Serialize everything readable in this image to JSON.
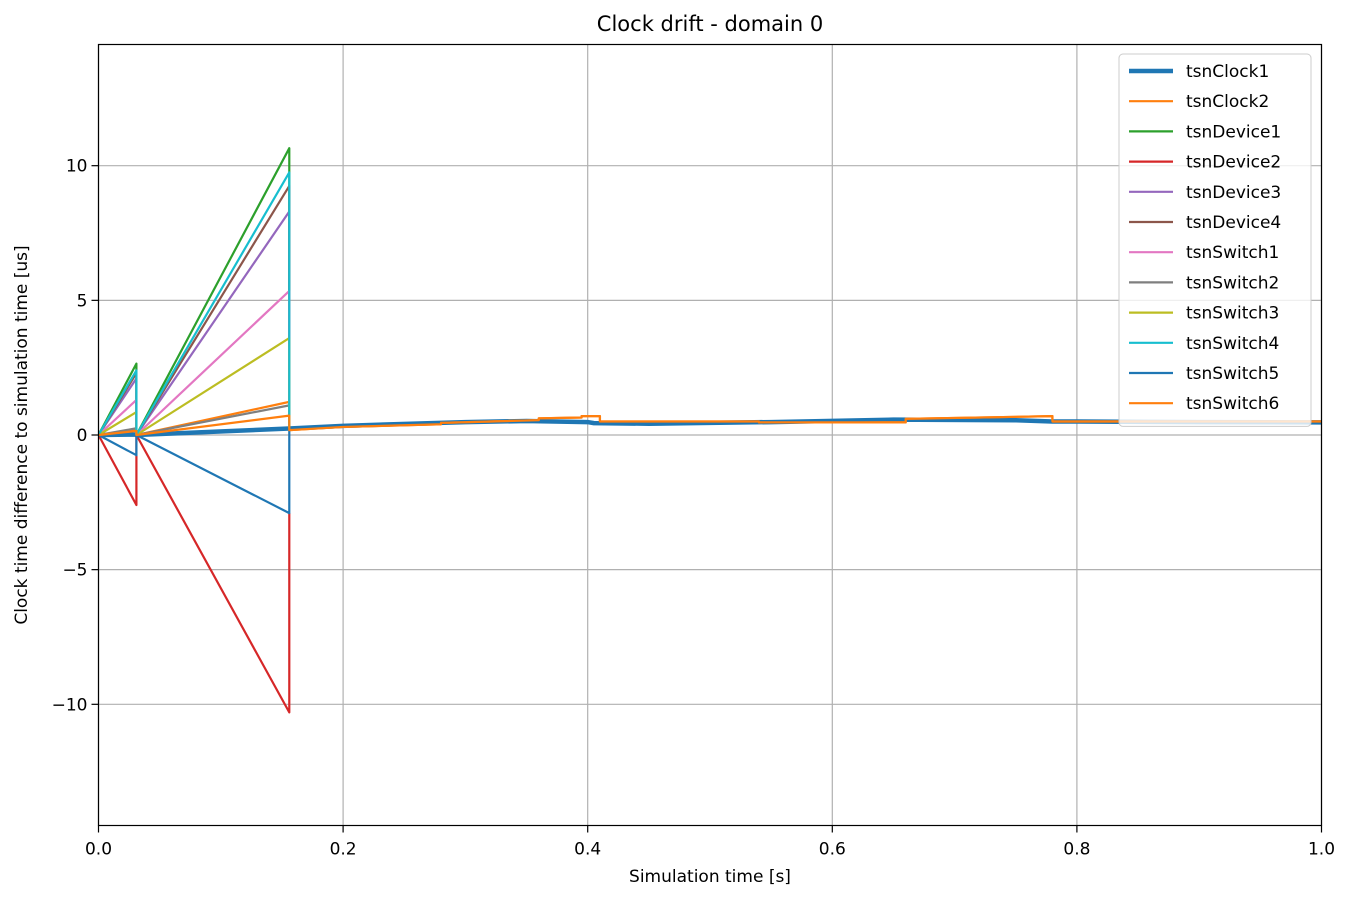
{
  "chart_data": {
    "type": "line",
    "title": "Clock drift - domain 0",
    "xlabel": "Simulation time [s]",
    "ylabel": "Clock time difference to simulation time [us]",
    "xlim": [
      0.0,
      1.0
    ],
    "ylim": [
      -14.5,
      14.5
    ],
    "xticks": [
      0.0,
      0.2,
      0.4,
      0.6,
      0.8,
      1.0
    ],
    "xtick_labels": [
      "0.0",
      "0.2",
      "0.4",
      "0.6",
      "0.8",
      "1.0"
    ],
    "yticks": [
      -10,
      -5,
      0,
      5,
      10
    ],
    "ytick_labels": [
      "−10",
      "−5",
      "0",
      "5",
      "10"
    ],
    "grid": true,
    "legend_position": "top-right",
    "series": [
      {
        "name": "tsnClock1",
        "color": "#1f77b4",
        "width": 4.5,
        "x": [
          0,
          0.031,
          0.031,
          0.156,
          0.2,
          0.3,
          0.35,
          0.4,
          0.405,
          0.45,
          0.55,
          0.65,
          0.75,
          0.78,
          0.8,
          0.9,
          1.0
        ],
        "y": [
          0,
          0.02,
          0,
          0.24,
          0.34,
          0.48,
          0.52,
          0.48,
          0.44,
          0.42,
          0.48,
          0.57,
          0.55,
          0.5,
          0.5,
          0.48,
          0.47
        ]
      },
      {
        "name": "tsnClock2",
        "color": "#ff7f0e",
        "width": 2.2,
        "x": [
          0,
          0.031,
          0.031,
          0.156,
          0.156,
          0.2,
          0.28,
          0.28,
          0.36,
          0.36,
          0.395,
          0.395,
          0.41,
          0.41,
          0.54,
          0.54,
          0.66,
          0.66,
          0.78,
          0.78,
          1.0
        ],
        "y": [
          0,
          0.18,
          0,
          1.23,
          0.18,
          0.3,
          0.4,
          0.45,
          0.55,
          0.62,
          0.65,
          0.7,
          0.7,
          0.5,
          0.5,
          0.47,
          0.47,
          0.6,
          0.7,
          0.5,
          0.5
        ]
      },
      {
        "name": "tsnDevice1",
        "color": "#2ca02c",
        "width": 2.2,
        "x": [
          0,
          0.031,
          0.031,
          0.156,
          0.156
        ],
        "y": [
          0,
          2.65,
          0,
          10.65,
          0.2
        ]
      },
      {
        "name": "tsnDevice2",
        "color": "#d62728",
        "width": 2.2,
        "x": [
          0,
          0.031,
          0.031,
          0.156,
          0.156
        ],
        "y": [
          0,
          -2.6,
          0,
          -10.3,
          -2.9
        ]
      },
      {
        "name": "tsnDevice3",
        "color": "#9467bd",
        "width": 2.2,
        "x": [
          0,
          0.031,
          0.031,
          0.156,
          0.156
        ],
        "y": [
          0,
          2.1,
          0,
          8.3,
          0.2
        ]
      },
      {
        "name": "tsnDevice4",
        "color": "#8c564b",
        "width": 2.2,
        "x": [
          0,
          0.031,
          0.031,
          0.156,
          0.156
        ],
        "y": [
          0,
          2.3,
          0,
          9.25,
          0.2
        ]
      },
      {
        "name": "tsnSwitch1",
        "color": "#e377c2",
        "width": 2.2,
        "x": [
          0,
          0.031,
          0.031,
          0.156,
          0.156
        ],
        "y": [
          0,
          1.3,
          0,
          5.35,
          0.2
        ]
      },
      {
        "name": "tsnSwitch2",
        "color": "#7f7f7f",
        "width": 2.2,
        "x": [
          0,
          0.031,
          0.031,
          0.156,
          0.156
        ],
        "y": [
          0,
          0.25,
          0,
          1.1,
          0.15
        ]
      },
      {
        "name": "tsnSwitch3",
        "color": "#bcbd22",
        "width": 2.2,
        "x": [
          0,
          0.031,
          0.031,
          0.156,
          0.156
        ],
        "y": [
          0,
          0.85,
          0,
          3.6,
          0.2
        ]
      },
      {
        "name": "tsnSwitch4",
        "color": "#17becf",
        "width": 2.2,
        "x": [
          0,
          0.031,
          0.031,
          0.156,
          0.156
        ],
        "y": [
          0,
          2.4,
          0,
          9.75,
          0.2
        ]
      },
      {
        "name": "tsnSwitch5",
        "color": "#1f77b4",
        "width": 2.2,
        "x": [
          0,
          0.031,
          0.031,
          0.156,
          0.156,
          0.2,
          0.3,
          0.35,
          0.4,
          0.405,
          0.45,
          0.55,
          0.65,
          0.75,
          0.78,
          0.8,
          0.9,
          1.0
        ],
        "y": [
          0,
          -0.75,
          0,
          -2.9,
          0.24,
          0.34,
          0.48,
          0.52,
          0.48,
          0.44,
          0.42,
          0.48,
          0.57,
          0.55,
          0.5,
          0.5,
          0.48,
          0.47
        ]
      },
      {
        "name": "tsnSwitch6",
        "color": "#ff7f0e",
        "width": 2.2,
        "x": [
          0,
          0.031,
          0.031,
          0.156,
          0.156,
          0.2,
          0.28,
          0.28,
          0.36,
          0.36,
          0.395,
          0.395,
          0.41,
          0.41,
          0.54,
          0.54,
          0.66,
          0.66,
          0.78,
          0.78,
          1.0
        ],
        "y": [
          0,
          0.15,
          0,
          0.72,
          0.18,
          0.3,
          0.4,
          0.45,
          0.55,
          0.62,
          0.65,
          0.7,
          0.7,
          0.5,
          0.5,
          0.47,
          0.47,
          0.6,
          0.7,
          0.5,
          0.5
        ]
      }
    ]
  }
}
